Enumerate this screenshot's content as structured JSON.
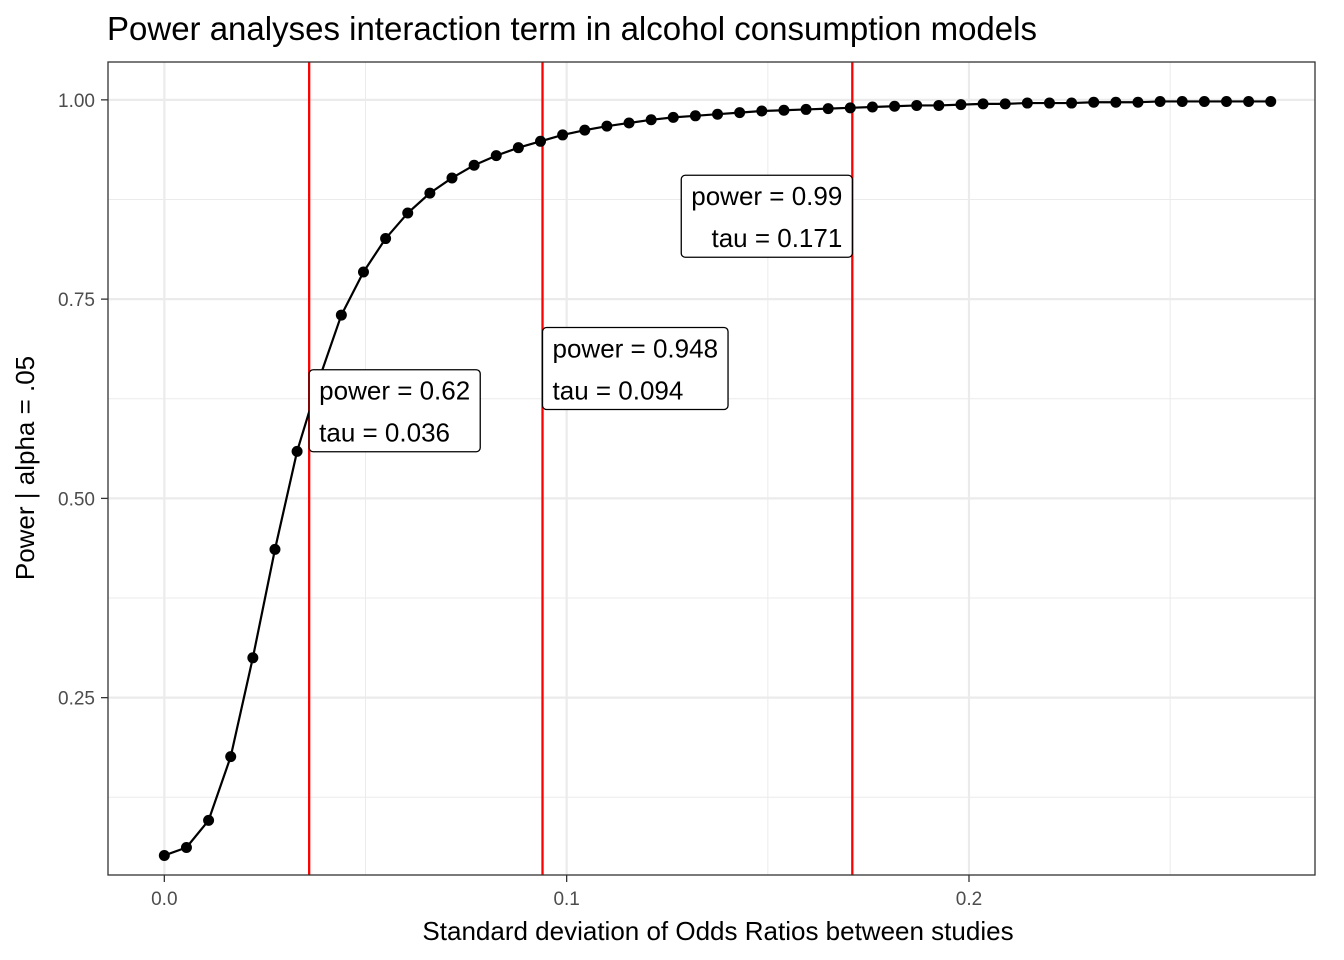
{
  "chart_data": {
    "type": "line",
    "title": "Power analyses interaction term in alcohol consumption models",
    "xlabel": "Standard deviation of Odds Ratios between studies",
    "ylabel": "Power | alpha = .05",
    "xlim": [
      -0.014,
      0.286
    ],
    "ylim": [
      0.0275,
      1.0475
    ],
    "x_ticks": [
      0.0,
      0.1,
      0.2
    ],
    "x_tick_labels": [
      "0.0",
      "0.1",
      "0.2"
    ],
    "y_ticks": [
      0.25,
      0.5,
      0.75,
      1.0
    ],
    "y_tick_labels": [
      "0.25",
      "0.50",
      "0.75",
      "1.00"
    ],
    "grid": true,
    "series": [
      {
        "x": [
          0.0,
          0.0055,
          0.011,
          0.0165,
          0.022,
          0.0275,
          0.033,
          0.0385,
          0.044,
          0.0495,
          0.055,
          0.0605,
          0.066,
          0.0715,
          0.077,
          0.0825,
          0.088,
          0.0935,
          0.099,
          0.1045,
          0.11,
          0.1155,
          0.121,
          0.1265,
          0.132,
          0.1375,
          0.143,
          0.1485,
          0.154,
          0.1595,
          0.165,
          0.1705,
          0.176,
          0.1815,
          0.187,
          0.1925,
          0.198,
          0.2035,
          0.209,
          0.2145,
          0.22,
          0.2255,
          0.231,
          0.2365,
          0.242,
          0.2475,
          0.253,
          0.2585,
          0.264,
          0.2695,
          0.275
        ],
        "y": [
          0.052,
          0.062,
          0.096,
          0.176,
          0.3,
          0.436,
          0.559,
          0.65,
          0.73,
          0.784,
          0.826,
          0.858,
          0.883,
          0.902,
          0.918,
          0.93,
          0.94,
          0.948,
          0.956,
          0.962,
          0.967,
          0.971,
          0.975,
          0.978,
          0.98,
          0.982,
          0.984,
          0.986,
          0.987,
          0.988,
          0.989,
          0.99,
          0.991,
          0.992,
          0.993,
          0.993,
          0.994,
          0.995,
          0.995,
          0.996,
          0.996,
          0.996,
          0.997,
          0.997,
          0.997,
          0.998,
          0.998,
          0.998,
          0.998,
          0.998,
          0.998
        ]
      }
    ],
    "reference_lines": {
      "x": [
        0.036,
        0.094,
        0.171
      ],
      "color": "#ff0000"
    },
    "annotations": [
      {
        "x": 0.036,
        "y": 0.61,
        "line1": "power = 0.62",
        "line2": "tau =  0.036",
        "hjust": 0,
        "align": "left"
      },
      {
        "x": 0.094,
        "y": 0.663,
        "line1": "power = 0.948",
        "line2": "tau =  0.094",
        "hjust": 0,
        "align": "left"
      },
      {
        "x": 0.171,
        "y": 0.854,
        "line1": "power = 0.99",
        "line2": "tau =  0.171",
        "hjust": 1,
        "align": "right"
      }
    ],
    "colors": {
      "line": "#000000",
      "points": "#000000",
      "grid": "#ebebeb",
      "panel_border": "#333333",
      "tick_text": "#4d4d4d"
    }
  }
}
